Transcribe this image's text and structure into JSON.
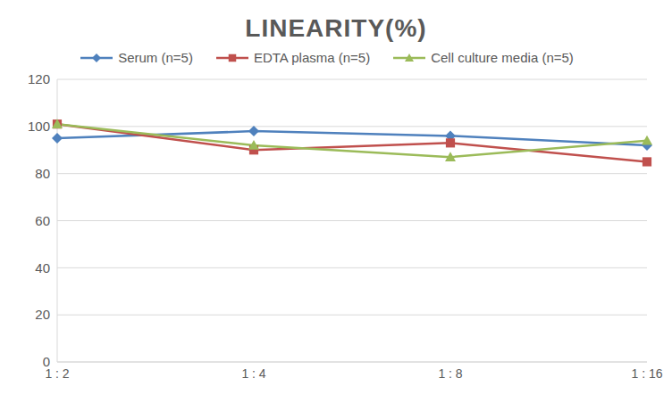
{
  "chart_data": {
    "type": "line",
    "title": "LINEARITY(%)",
    "categories": [
      "1 : 2",
      "1 : 4",
      "1 : 8",
      "1 : 16"
    ],
    "series": [
      {
        "name": "Serum (n=5)",
        "color": "#4f81bd",
        "marker": "diamond",
        "values": [
          95,
          98,
          96,
          92
        ]
      },
      {
        "name": "EDTA plasma (n=5)",
        "color": "#c0504d",
        "marker": "square",
        "values": [
          101,
          90,
          93,
          85
        ]
      },
      {
        "name": "Cell culture media (n=5)",
        "color": "#9bbb59",
        "marker": "triangle",
        "values": [
          101,
          92,
          87,
          94
        ]
      }
    ],
    "ylim": [
      0,
      120
    ],
    "yticks": [
      0,
      20,
      40,
      60,
      80,
      100,
      120
    ],
    "grid": true,
    "legend": "top"
  }
}
